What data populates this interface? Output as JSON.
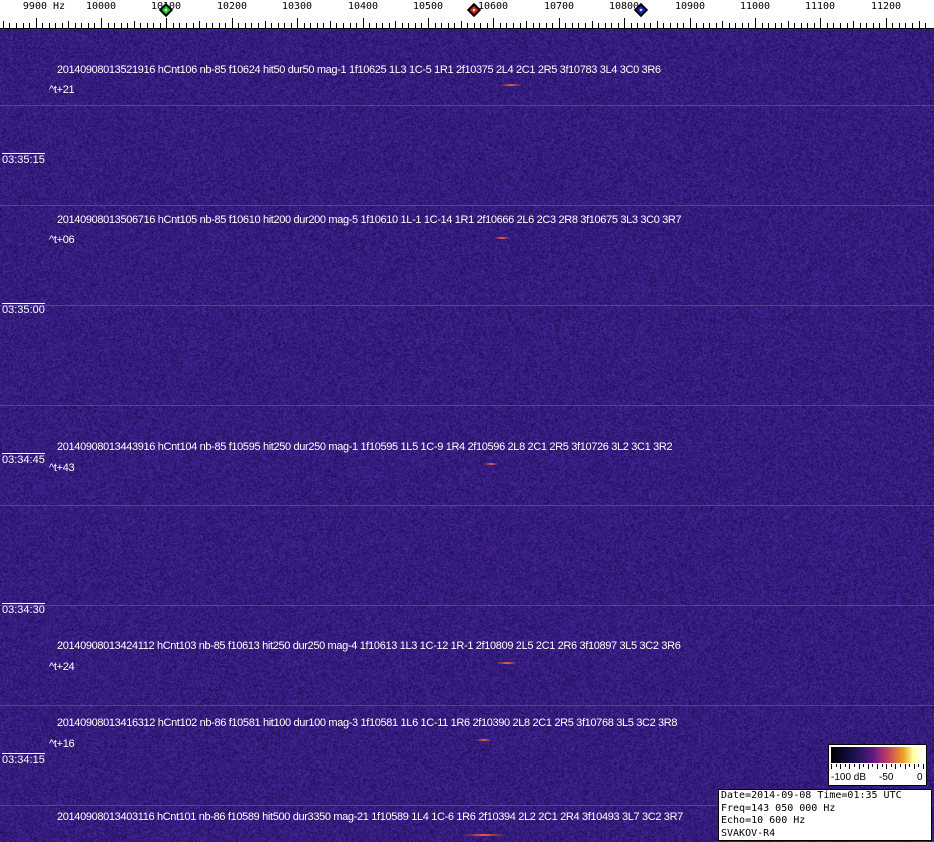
{
  "axis": {
    "unit": "Hz",
    "labels": [
      "9900",
      "10000",
      "10100",
      "10200",
      "10300",
      "10400",
      "10500",
      "10600",
      "10700",
      "10800",
      "10900",
      "11000",
      "11100",
      "11200"
    ],
    "markers": [
      {
        "name": "green-marker",
        "freq": 10100,
        "color": "#22cc22"
      },
      {
        "name": "red-marker",
        "freq": 10570,
        "color": "#dd2222"
      },
      {
        "name": "blue-marker",
        "freq": 10825,
        "color": "#1a2acc"
      }
    ]
  },
  "times": [
    "03:35:15",
    "03:35:00",
    "03:34:45",
    "03:34:30",
    "03:34:15"
  ],
  "detections": [
    {
      "text": "20140908013521916 hCnt106 nb-85 f10624 hit50 dur50 mag-1 1f10625 1L3 1C-5 1R1 2f10375 2L4 2C1 2R5 3f10783 3L4 3C0 3R6",
      "delta": "^t+21"
    },
    {
      "text": "20140908013506716 hCnt105 nb-85 f10610 hit200 dur200 mag-5 1f10610 1L-1 1C-14 1R1 2f10666 2L6 2C3 2R8 3f10675 3L3 3C0 3R7",
      "delta": "^t+06"
    },
    {
      "text": "20140908013443916 hCnt104 nb-85 f10595 hit250 dur250 mag-1 1f10595 1L5 1C-9 1R4 2f10596 2L8 2C1 2R5 3f10726 3L2 3C1 3R2",
      "delta": "^t+43"
    },
    {
      "text": "20140908013424112 hCnt103 nb-85 f10613 hit250 dur250 mag-4 1f10613 1L3 1C-12 1R-1 2f10809 2L5 2C1 2R6 3f10897 3L5 3C2 3R6",
      "delta": "^t+24"
    },
    {
      "text": "20140908013416312 hCnt102 nb-86 f10581 hit100 dur100 mag-3 1f10581 1L6 1C-11 1R6 2f10390 2L8 2C1 2R5 3f10768 3L5 3C2 3R8",
      "delta": "^t+16"
    },
    {
      "text": "20140908013403116 hCnt101 nb-86 f10589 hit500 dur3350 mag-21 1f10589 1L4 1C-6 1R6 2f10394 2L2 2C1 2R4 3f10493 3L7 3C2 3R7",
      "delta": ""
    }
  ],
  "colorscale": {
    "labels": [
      "-100 dB",
      "-50",
      "0"
    ]
  },
  "info": {
    "line1": "Date=2014-09-08 Time=01:35 UTC",
    "line2": "Freq=143 050 000 Hz",
    "line3": "Echo=10 600 Hz",
    "line4": "SVAKOV-R4"
  }
}
